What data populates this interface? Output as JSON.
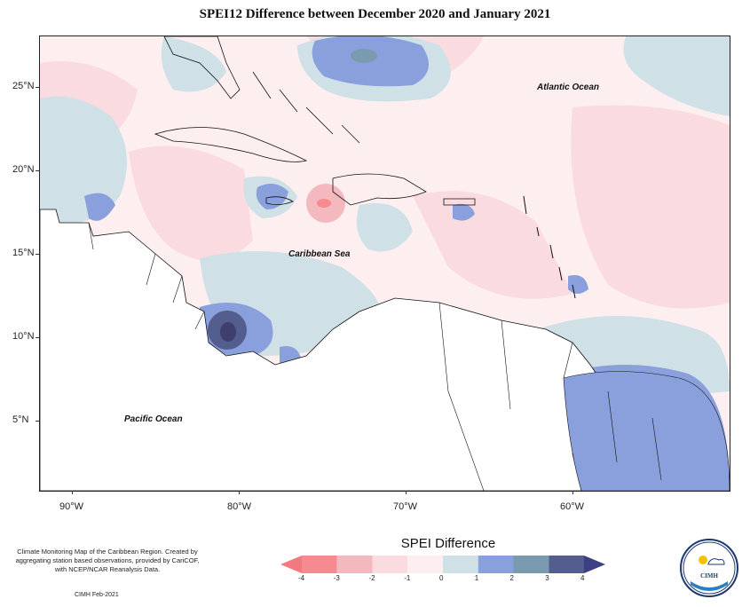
{
  "title": "SPEI12 Difference between December 2020 and January 2021",
  "map": {
    "labels": {
      "atlantic": "Atlantic Ocean",
      "caribbean": "Caribbean Sea",
      "pacific": "Pacific Ocean"
    },
    "lat_ticks": [
      "25°N",
      "20°N",
      "15°N",
      "10°N",
      "5°N"
    ],
    "lon_ticks": [
      "90°W",
      "80°W",
      "70°W",
      "60°W"
    ]
  },
  "legend": {
    "title": "SPEI Difference",
    "ticks": [
      "-4",
      "-3",
      "-2",
      "-1",
      "0",
      "1",
      "2",
      "3",
      "4"
    ],
    "colors": [
      "#f58a90",
      "#f4b9be",
      "#fadbe0",
      "#fdeff0",
      "#cfe0e6",
      "#8aa0dd",
      "#7a9ab0",
      "#535e8e"
    ],
    "arrow_low": "#f07a80",
    "arrow_high": "#3e3f82"
  },
  "credits": {
    "text": "Climate Monitoring Map of the Caribbean Region. Created by aggregating station based observations, provided by CariCOF, with NCEP/NCAR Reanalysis Data.",
    "date": "CIMH Feb-2021"
  },
  "logo": {
    "name": "CIMH",
    "icon": "cimh-logo-icon"
  }
}
